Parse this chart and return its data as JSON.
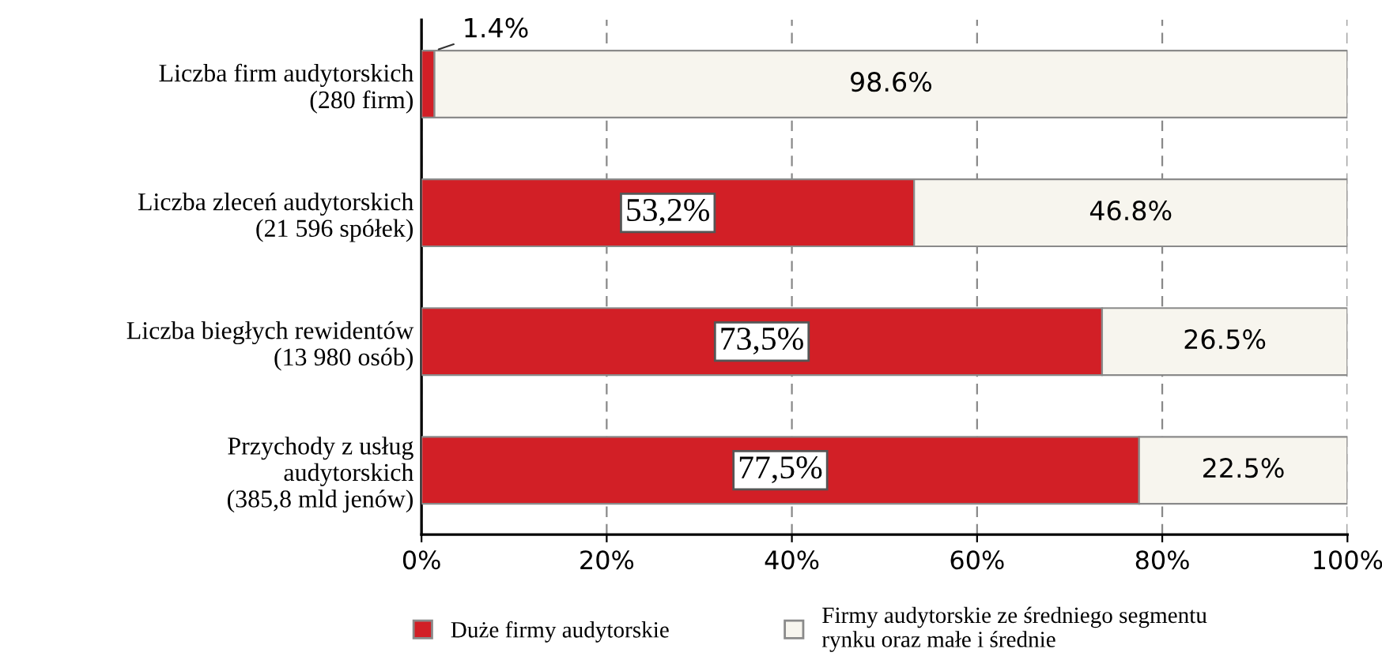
{
  "chart_data": {
    "type": "bar",
    "orientation": "horizontal",
    "stacked": true,
    "categories": [
      "Liczba firm audytorskich\n(280 firm)",
      "Liczba zleceń audytorskich\n(21 596 spółek)",
      "Liczba biegłych rewidentów\n(13 980 osób)",
      "Przychody z usług\naudytorskich\n(385,8 mld jenów)"
    ],
    "series": [
      {
        "name": "Duże firmy audytorskie",
        "color": "#d21f26",
        "values": [
          1.4,
          53.2,
          73.5,
          77.5
        ],
        "value_labels": [
          "1.4%",
          "53,2%",
          "73,5%",
          "77,5%"
        ]
      },
      {
        "name": "Firmy audytorskie ze średniego segmentu\nrynku oraz małe i średnie",
        "color": "#f7f5ee",
        "values": [
          98.6,
          46.8,
          26.5,
          22.5
        ],
        "value_labels": [
          "98.6%",
          "46.8%",
          "26.5%",
          "22.5%"
        ]
      }
    ],
    "xlim": [
      0,
      100
    ],
    "xticks": [
      {
        "value": 0,
        "label": "0%"
      },
      {
        "value": 20,
        "label": "20%"
      },
      {
        "value": 40,
        "label": "40%"
      },
      {
        "value": 60,
        "label": "60%"
      },
      {
        "value": 80,
        "label": "80%"
      },
      {
        "value": 100,
        "label": "100%"
      }
    ],
    "grid": "x",
    "legend": "bottom"
  }
}
